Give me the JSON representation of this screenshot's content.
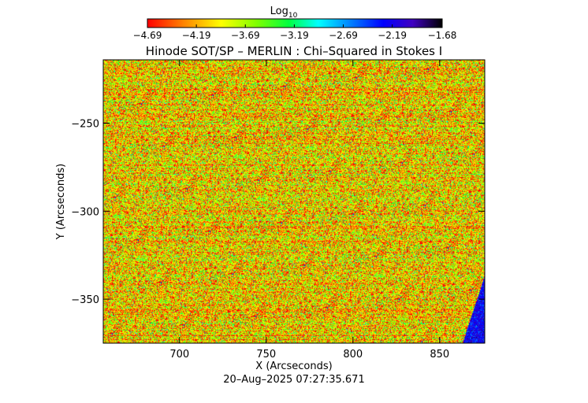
{
  "chart_data": {
    "type": "heatmap",
    "title": "Hinode SOT/SP – MERLIN : Chi–Squared in Stokes I",
    "xlabel": "X (Arcseconds)",
    "ylabel": "Y (Arcseconds)",
    "xlim": [
      656,
      876
    ],
    "ylim": [
      -375,
      -214
    ],
    "x_ticks": [
      700,
      750,
      800,
      850
    ],
    "y_ticks": [
      -250,
      -300,
      -350
    ],
    "colorbar": {
      "title": "Log",
      "title_subscript": "10",
      "range": [
        -4.69,
        -1.68
      ],
      "ticks": [
        "-4.69",
        "-4.19",
        "-3.69",
        "-3.19",
        "-2.69",
        "-2.19",
        "-1.68"
      ],
      "colormap": [
        "#ff0000",
        "#ff8000",
        "#ffff00",
        "#80ff00",
        "#00ff40",
        "#00ffff",
        "#0080ff",
        "#0000ff",
        "#4000c0",
        "#000000"
      ]
    },
    "values_summary": {
      "typical_log_chi2": -4.1,
      "typical_spread": 0.45,
      "corner_region": "bottom-right blue wedge, x from ~863 to 876 at y=-375 narrowing to x=876 at y≈-336",
      "corner_log_chi2": -2.3
    },
    "timestamp": "20–Aug–2025 07:27:35.671"
  }
}
